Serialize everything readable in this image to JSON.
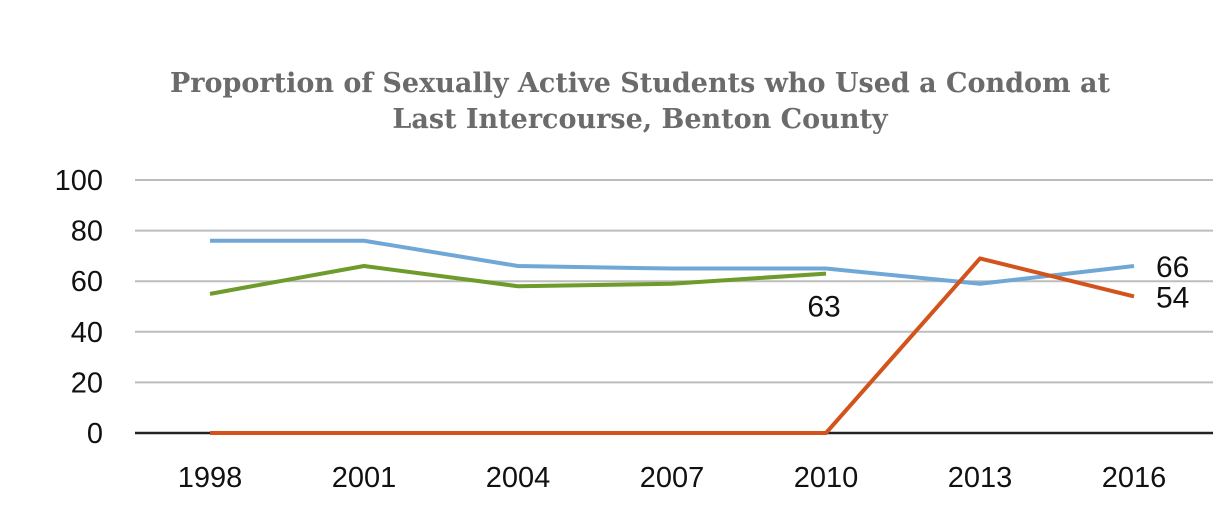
{
  "chart_data": {
    "type": "line",
    "title_line1": "Proportion of Sexually Active Students who Used a Condom at",
    "title_line2": "Last Intercourse, Benton County",
    "categories": [
      "1998",
      "2001",
      "2004",
      "2007",
      "2010",
      "2013",
      "2016"
    ],
    "ylim": [
      0,
      100
    ],
    "yticks": [
      "0",
      "20",
      "40",
      "60",
      "80",
      "100"
    ],
    "grid": true,
    "series": [
      {
        "color": "#6fa8d6",
        "values": [
          76,
          76,
          66,
          65,
          65,
          59,
          66
        ]
      },
      {
        "color": "#6e9b2b",
        "values": [
          55,
          66,
          58,
          59,
          63,
          null,
          null
        ]
      },
      {
        "color": "#d2541c",
        "values": [
          0,
          0,
          0,
          0,
          0,
          69,
          54
        ]
      }
    ],
    "data_labels": [
      {
        "text": "66",
        "category": "2016",
        "value": 66
      },
      {
        "text": "54",
        "category": "2016",
        "value": 54
      },
      {
        "text": "63",
        "category": "2010",
        "value": 63
      }
    ]
  }
}
